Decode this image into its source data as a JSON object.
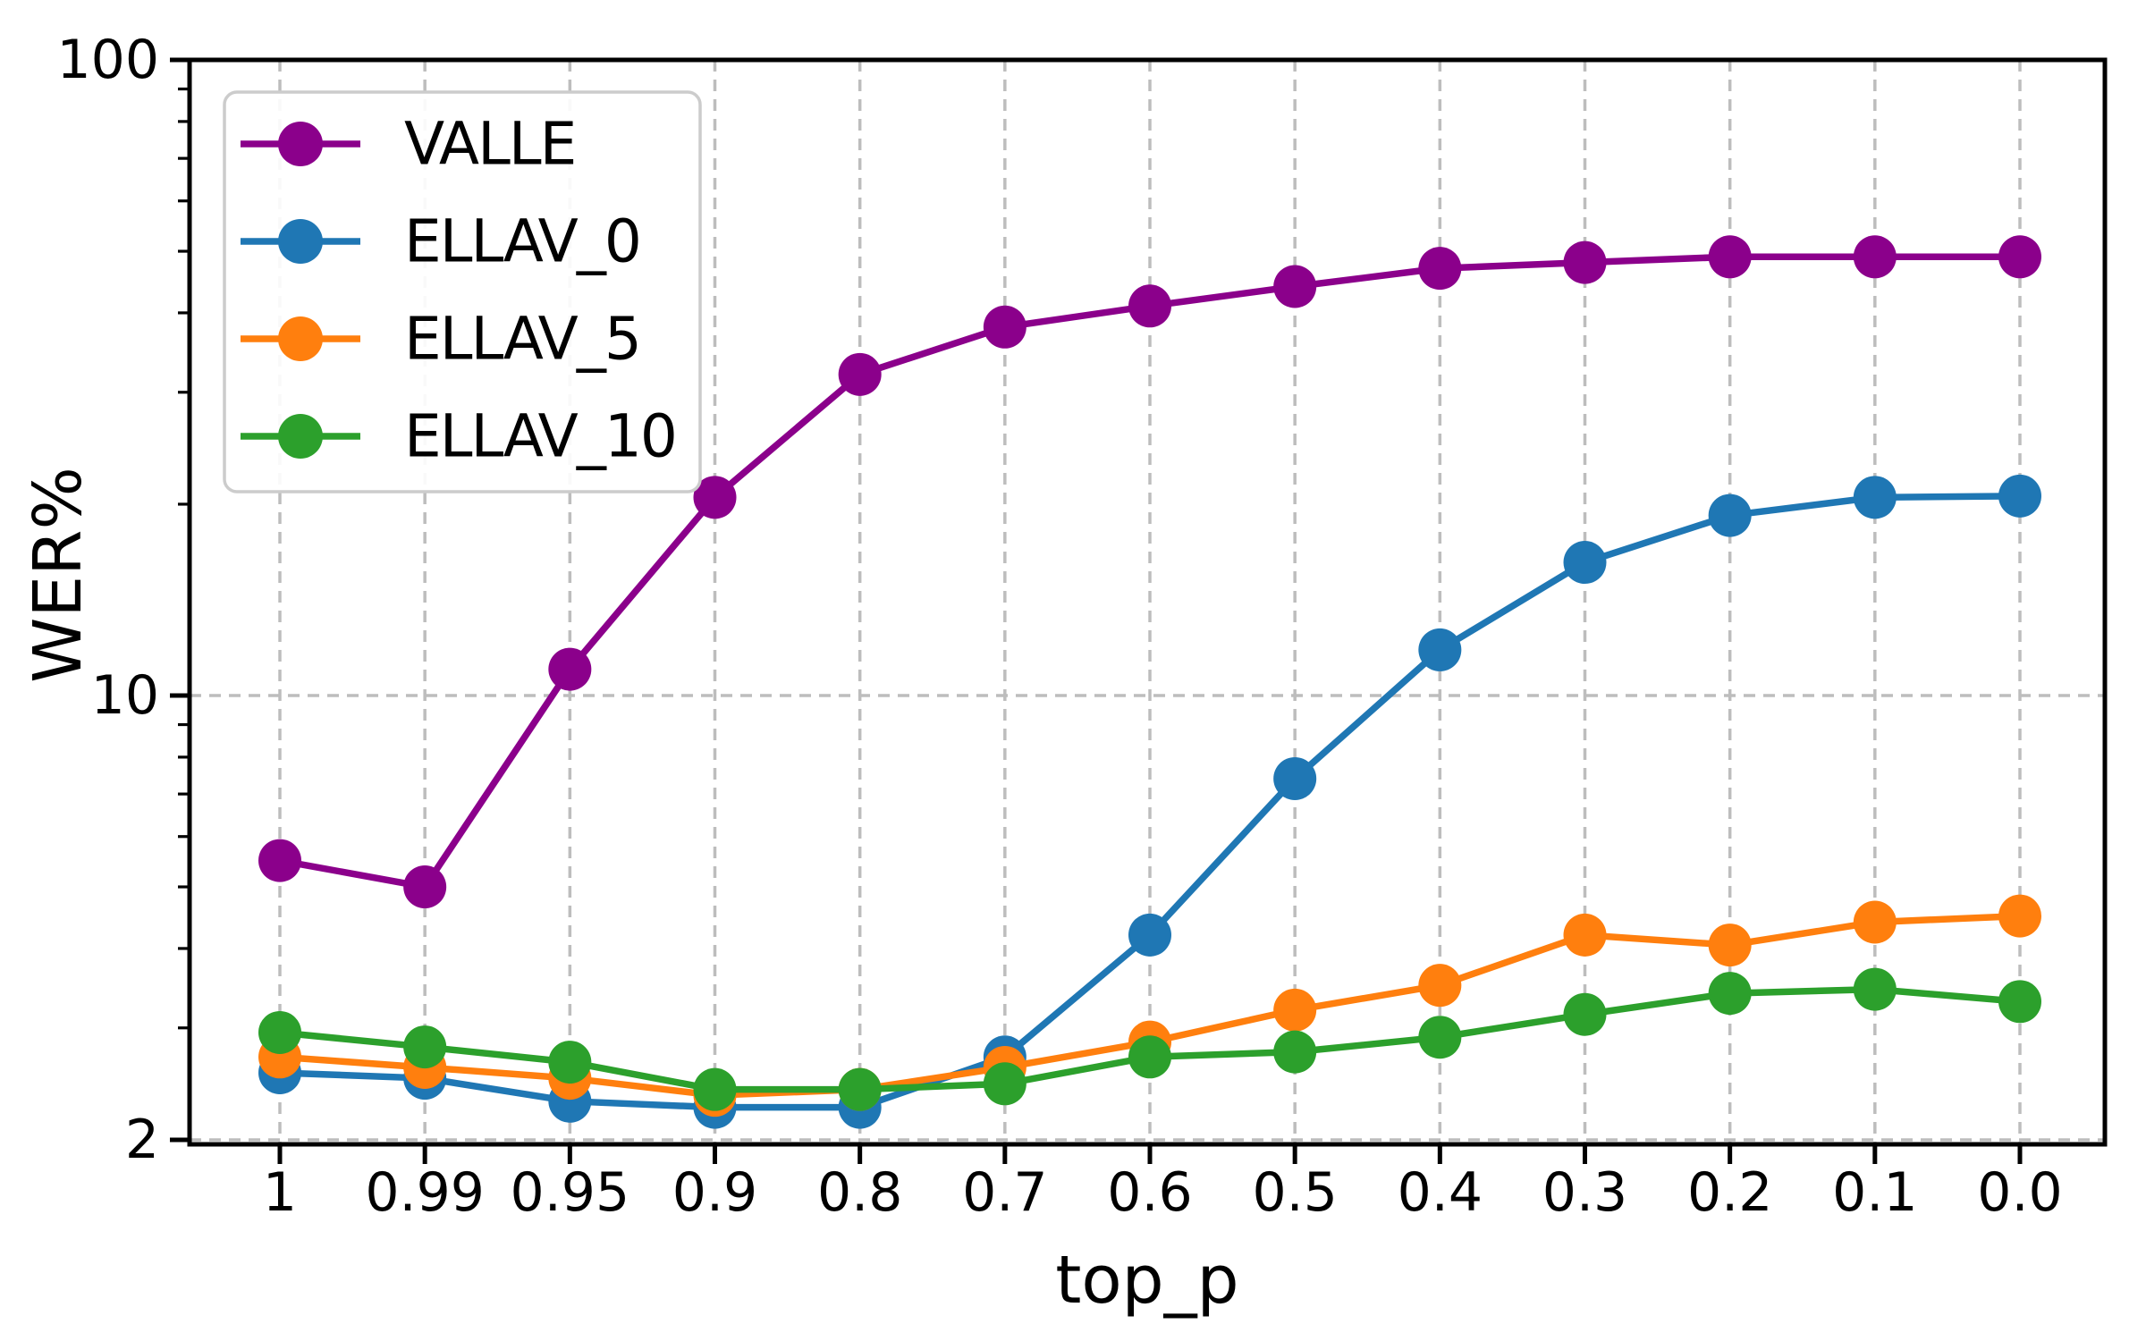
{
  "chart_data": {
    "type": "line",
    "title": "",
    "xlabel": "top_p",
    "ylabel": "WER%",
    "x_categories": [
      "1",
      "0.99",
      "0.95",
      "0.9",
      "0.8",
      "0.7",
      "0.6",
      "0.5",
      "0.4",
      "0.3",
      "0.2",
      "0.1",
      "0.0"
    ],
    "y_scale": "log",
    "ylim": [
      1.97,
      100
    ],
    "y_major_ticks": [
      100,
      10,
      2
    ],
    "y_major_tick_labels": [
      "100",
      "10",
      "2"
    ],
    "y_minor_ticks": [
      90,
      80,
      70,
      60,
      50,
      40,
      30,
      20,
      9,
      8,
      7,
      6,
      5,
      4,
      3
    ],
    "y_gridline_values": [
      10,
      2
    ],
    "grid": true,
    "legend_position": "upper-left",
    "colors": {
      "grid": "#bdbdbd",
      "spine": "#000000",
      "legend_border": "#cccccc",
      "legend_background": "#ffffff",
      "text": "#000000"
    },
    "series": [
      {
        "name": "VALLE",
        "color": "#8B008B",
        "values": [
          5.5,
          5.0,
          11.0,
          20.5,
          32,
          38,
          41,
          44,
          47,
          48,
          49,
          49,
          49
        ]
      },
      {
        "name": "ELLAV_0",
        "color": "#1f77b4",
        "values": [
          2.55,
          2.5,
          2.3,
          2.25,
          2.25,
          2.7,
          4.2,
          7.4,
          11.8,
          16.2,
          19.2,
          20.5,
          20.6
        ]
      },
      {
        "name": "ELLAV_5",
        "color": "#ff7f0e",
        "values": [
          2.7,
          2.6,
          2.5,
          2.35,
          2.4,
          2.6,
          2.85,
          3.2,
          3.5,
          4.2,
          4.05,
          4.4,
          4.5
        ]
      },
      {
        "name": "ELLAV_10",
        "color": "#2ca02c",
        "values": [
          2.95,
          2.8,
          2.65,
          2.4,
          2.4,
          2.45,
          2.7,
          2.75,
          2.9,
          3.15,
          3.4,
          3.45,
          3.3
        ]
      }
    ]
  }
}
